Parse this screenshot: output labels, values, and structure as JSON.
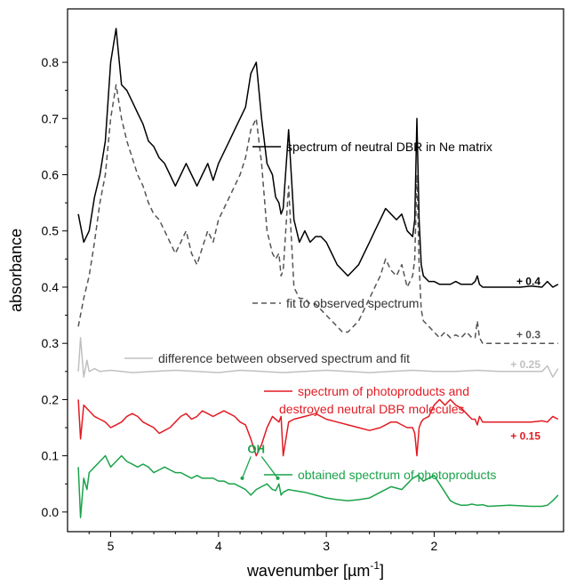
{
  "chart_data": {
    "type": "line",
    "title": "",
    "xlabel": "wavenumber [µm",
    "xlabel_superscript": "-1",
    "xlabel_close": "]",
    "ylabel": "absorbance",
    "xlim": [
      5.4,
      0.8
    ],
    "ylim": [
      -0.035,
      0.895
    ],
    "x_ticks": [
      5,
      4,
      3,
      2
    ],
    "x_minor_ticks": [
      5.2,
      4.8,
      4.6,
      4.4,
      4.2,
      3.8,
      3.6,
      3.4,
      3.2,
      2.8,
      2.6,
      2.4,
      2.2,
      1.8,
      1.6,
      1.4
    ],
    "y_ticks": [
      0.0,
      0.1,
      0.2,
      0.3,
      0.4,
      0.5,
      0.6,
      0.7,
      0.8
    ],
    "y_tick_labels": [
      "0.0",
      "0.1",
      "0.2",
      "0.3",
      "0.4",
      "0.5",
      "0.6",
      "0.7",
      "0.8"
    ],
    "series": [
      {
        "name": "spectrum of neutral DBR in Ne matrix",
        "color": "#000000",
        "style": "solid",
        "offset_label": "+ 0.4",
        "offset": 0.4,
        "x": [
          5.3,
          5.25,
          5.2,
          5.15,
          5.1,
          5.05,
          5.0,
          4.95,
          4.9,
          4.85,
          4.8,
          4.75,
          4.7,
          4.65,
          4.6,
          4.55,
          4.5,
          4.45,
          4.4,
          4.35,
          4.3,
          4.25,
          4.2,
          4.15,
          4.1,
          4.05,
          4.0,
          3.95,
          3.9,
          3.85,
          3.8,
          3.75,
          3.7,
          3.65,
          3.6,
          3.55,
          3.5,
          3.47,
          3.44,
          3.42,
          3.4,
          3.35,
          3.3,
          3.25,
          3.2,
          3.15,
          3.1,
          3.05,
          3.0,
          2.95,
          2.9,
          2.85,
          2.8,
          2.75,
          2.7,
          2.65,
          2.6,
          2.55,
          2.5,
          2.45,
          2.4,
          2.35,
          2.3,
          2.25,
          2.2,
          2.18,
          2.16,
          2.14,
          2.12,
          2.1,
          2.05,
          2.0,
          1.95,
          1.9,
          1.85,
          1.8,
          1.75,
          1.7,
          1.65,
          1.62,
          1.6,
          1.58,
          1.55,
          1.5,
          1.4,
          1.3,
          1.2,
          1.1,
          1.0,
          0.95,
          0.9,
          0.85
        ],
        "y": [
          0.53,
          0.48,
          0.5,
          0.56,
          0.6,
          0.66,
          0.8,
          0.86,
          0.76,
          0.75,
          0.73,
          0.71,
          0.69,
          0.66,
          0.65,
          0.63,
          0.62,
          0.6,
          0.58,
          0.6,
          0.62,
          0.6,
          0.58,
          0.6,
          0.62,
          0.59,
          0.62,
          0.64,
          0.66,
          0.68,
          0.7,
          0.72,
          0.78,
          0.8,
          0.7,
          0.62,
          0.6,
          0.56,
          0.55,
          0.53,
          0.54,
          0.68,
          0.52,
          0.48,
          0.5,
          0.48,
          0.49,
          0.49,
          0.48,
          0.46,
          0.44,
          0.43,
          0.42,
          0.43,
          0.44,
          0.46,
          0.48,
          0.5,
          0.52,
          0.54,
          0.53,
          0.52,
          0.53,
          0.5,
          0.49,
          0.52,
          0.7,
          0.52,
          0.44,
          0.42,
          0.41,
          0.41,
          0.405,
          0.405,
          0.405,
          0.41,
          0.405,
          0.405,
          0.405,
          0.41,
          0.42,
          0.405,
          0.4,
          0.4,
          0.4,
          0.4,
          0.4,
          0.402,
          0.4,
          0.41,
          0.4,
          0.405
        ]
      },
      {
        "name": "fit to observed spectrum",
        "color": "#555555",
        "style": "dashed",
        "offset_label": "+ 0.3",
        "offset": 0.3,
        "x": [
          5.3,
          5.25,
          5.2,
          5.15,
          5.1,
          5.05,
          5.0,
          4.95,
          4.9,
          4.85,
          4.8,
          4.75,
          4.7,
          4.65,
          4.6,
          4.55,
          4.5,
          4.45,
          4.4,
          4.35,
          4.3,
          4.25,
          4.2,
          4.15,
          4.1,
          4.05,
          4.0,
          3.95,
          3.9,
          3.85,
          3.8,
          3.75,
          3.7,
          3.65,
          3.6,
          3.55,
          3.5,
          3.47,
          3.44,
          3.42,
          3.4,
          3.35,
          3.3,
          3.25,
          3.2,
          3.15,
          3.1,
          3.05,
          3.0,
          2.95,
          2.9,
          2.85,
          2.8,
          2.75,
          2.7,
          2.65,
          2.6,
          2.55,
          2.5,
          2.45,
          2.4,
          2.35,
          2.3,
          2.25,
          2.2,
          2.18,
          2.16,
          2.14,
          2.12,
          2.1,
          2.05,
          2.0,
          1.95,
          1.9,
          1.85,
          1.8,
          1.75,
          1.7,
          1.65,
          1.62,
          1.6,
          1.58,
          1.55,
          1.5,
          1.4,
          1.3,
          1.2,
          1.1,
          1.0,
          0.95,
          0.9,
          0.85
        ],
        "y": [
          0.33,
          0.38,
          0.42,
          0.48,
          0.55,
          0.6,
          0.7,
          0.76,
          0.7,
          0.66,
          0.63,
          0.6,
          0.58,
          0.55,
          0.53,
          0.52,
          0.5,
          0.48,
          0.46,
          0.48,
          0.5,
          0.46,
          0.44,
          0.47,
          0.5,
          0.48,
          0.52,
          0.54,
          0.56,
          0.58,
          0.6,
          0.63,
          0.68,
          0.7,
          0.62,
          0.5,
          0.46,
          0.45,
          0.46,
          0.42,
          0.43,
          0.58,
          0.4,
          0.38,
          0.38,
          0.37,
          0.37,
          0.36,
          0.35,
          0.34,
          0.33,
          0.32,
          0.32,
          0.33,
          0.34,
          0.36,
          0.38,
          0.4,
          0.42,
          0.45,
          0.43,
          0.42,
          0.44,
          0.4,
          0.42,
          0.45,
          0.6,
          0.44,
          0.36,
          0.34,
          0.33,
          0.32,
          0.31,
          0.32,
          0.31,
          0.315,
          0.31,
          0.32,
          0.31,
          0.31,
          0.34,
          0.31,
          0.3,
          0.3,
          0.3,
          0.3,
          0.3,
          0.3,
          0.3,
          0.3,
          0.3,
          0.3
        ]
      },
      {
        "name": "difference between observed spectrum and fit",
        "color": "#c0c0c0",
        "style": "solid",
        "offset_label": "+ 0.25",
        "offset": 0.25,
        "x": [
          5.3,
          5.28,
          5.25,
          5.22,
          5.2,
          5.15,
          5.1,
          5.0,
          4.9,
          4.8,
          4.6,
          4.4,
          4.2,
          4.0,
          3.8,
          3.6,
          3.4,
          3.2,
          3.0,
          2.8,
          2.6,
          2.4,
          2.2,
          2.0,
          1.8,
          1.6,
          1.4,
          1.2,
          1.0,
          0.95,
          0.9,
          0.85
        ],
        "y": [
          0.25,
          0.31,
          0.24,
          0.27,
          0.25,
          0.255,
          0.25,
          0.252,
          0.25,
          0.248,
          0.25,
          0.252,
          0.25,
          0.248,
          0.252,
          0.25,
          0.248,
          0.25,
          0.252,
          0.25,
          0.248,
          0.25,
          0.252,
          0.25,
          0.25,
          0.252,
          0.25,
          0.25,
          0.25,
          0.26,
          0.24,
          0.255
        ]
      },
      {
        "name": "spectrum of photoproducts and",
        "name_line2": "destroyed neutral DBR molecules",
        "color": "#e21b23",
        "style": "solid",
        "offset_label": "+ 0.15",
        "offset": 0.15,
        "x": [
          5.3,
          5.28,
          5.25,
          5.2,
          5.15,
          5.1,
          5.05,
          5.0,
          4.95,
          4.9,
          4.85,
          4.8,
          4.75,
          4.7,
          4.65,
          4.6,
          4.55,
          4.5,
          4.45,
          4.4,
          4.35,
          4.3,
          4.25,
          4.2,
          4.15,
          4.1,
          4.05,
          4.0,
          3.95,
          3.9,
          3.85,
          3.8,
          3.75,
          3.7,
          3.65,
          3.6,
          3.55,
          3.5,
          3.47,
          3.44,
          3.42,
          3.4,
          3.35,
          3.3,
          3.2,
          3.1,
          3.0,
          2.9,
          2.8,
          2.7,
          2.6,
          2.5,
          2.45,
          2.4,
          2.35,
          2.3,
          2.25,
          2.2,
          2.18,
          2.16,
          2.14,
          2.12,
          2.1,
          2.05,
          2.0,
          1.95,
          1.9,
          1.85,
          1.8,
          1.75,
          1.7,
          1.65,
          1.62,
          1.6,
          1.58,
          1.55,
          1.5,
          1.4,
          1.3,
          1.2,
          1.1,
          1.0,
          0.95,
          0.9,
          0.85
        ],
        "y": [
          0.2,
          0.13,
          0.19,
          0.18,
          0.17,
          0.165,
          0.16,
          0.15,
          0.155,
          0.16,
          0.17,
          0.175,
          0.17,
          0.16,
          0.155,
          0.15,
          0.14,
          0.145,
          0.15,
          0.16,
          0.17,
          0.175,
          0.165,
          0.17,
          0.18,
          0.175,
          0.17,
          0.175,
          0.18,
          0.175,
          0.17,
          0.16,
          0.155,
          0.13,
          0.1,
          0.12,
          0.15,
          0.17,
          0.165,
          0.16,
          0.17,
          0.1,
          0.16,
          0.165,
          0.17,
          0.175,
          0.165,
          0.16,
          0.155,
          0.15,
          0.145,
          0.15,
          0.155,
          0.16,
          0.16,
          0.155,
          0.15,
          0.15,
          0.14,
          0.1,
          0.15,
          0.16,
          0.165,
          0.17,
          0.19,
          0.2,
          0.19,
          0.2,
          0.19,
          0.185,
          0.175,
          0.165,
          0.165,
          0.155,
          0.17,
          0.16,
          0.16,
          0.16,
          0.16,
          0.16,
          0.16,
          0.162,
          0.16,
          0.17,
          0.165
        ]
      },
      {
        "name": "obtained spectrum of photoproducts",
        "color": "#1aa34a",
        "style": "solid",
        "offset_label": "",
        "offset": 0.0,
        "x": [
          5.3,
          5.28,
          5.25,
          5.22,
          5.2,
          5.15,
          5.1,
          5.05,
          5.0,
          4.95,
          4.9,
          4.85,
          4.8,
          4.75,
          4.7,
          4.65,
          4.6,
          4.55,
          4.5,
          4.45,
          4.4,
          4.35,
          4.3,
          4.25,
          4.2,
          4.15,
          4.1,
          4.05,
          4.0,
          3.95,
          3.9,
          3.85,
          3.8,
          3.75,
          3.7,
          3.65,
          3.6,
          3.55,
          3.5,
          3.47,
          3.44,
          3.42,
          3.4,
          3.35,
          3.3,
          3.2,
          3.1,
          3.0,
          2.9,
          2.8,
          2.7,
          2.6,
          2.5,
          2.4,
          2.3,
          2.25,
          2.2,
          2.15,
          2.1,
          2.05,
          2.0,
          1.95,
          1.9,
          1.85,
          1.8,
          1.75,
          1.7,
          1.65,
          1.6,
          1.55,
          1.5,
          1.4,
          1.3,
          1.2,
          1.1,
          1.0,
          0.95,
          0.9,
          0.85
        ],
        "y": [
          0.08,
          -0.01,
          0.06,
          0.04,
          0.07,
          0.08,
          0.09,
          0.1,
          0.08,
          0.09,
          0.1,
          0.09,
          0.085,
          0.08,
          0.085,
          0.08,
          0.07,
          0.075,
          0.08,
          0.075,
          0.07,
          0.07,
          0.065,
          0.06,
          0.065,
          0.06,
          0.06,
          0.06,
          0.055,
          0.055,
          0.05,
          0.05,
          0.045,
          0.04,
          0.03,
          0.04,
          0.045,
          0.05,
          0.04,
          0.038,
          0.05,
          0.03,
          0.035,
          0.04,
          0.038,
          0.035,
          0.03,
          0.025,
          0.022,
          0.02,
          0.022,
          0.025,
          0.035,
          0.045,
          0.04,
          0.05,
          0.06,
          0.065,
          0.055,
          0.06,
          0.065,
          0.05,
          0.035,
          0.02,
          0.015,
          0.012,
          0.012,
          0.014,
          0.012,
          0.013,
          0.01,
          0.011,
          0.012,
          0.011,
          0.01,
          0.01,
          0.012,
          0.02,
          0.03
        ]
      }
    ],
    "annotations": [
      {
        "text": "OH",
        "color": "#1aa34a",
        "x": 3.65,
        "y": 0.105,
        "arrows_to": [
          [
            3.78,
            0.06
          ],
          [
            3.45,
            0.06
          ]
        ]
      }
    ],
    "legend_placement": "inline-right-of-curves",
    "grid": false
  }
}
